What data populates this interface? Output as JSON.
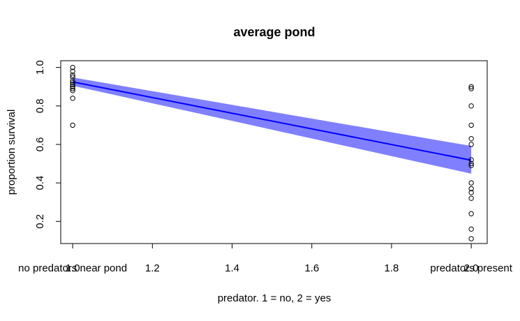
{
  "chart_data": {
    "type": "scatter",
    "title": "average pond",
    "xlabel": "predator. 1 = no, 2 = yes",
    "ylabel": "proportion survival",
    "xlim": [
      0.97,
      2.04
    ],
    "ylim": [
      0.085,
      1.035
    ],
    "x_ticks": [
      1.0,
      1.2,
      1.4,
      1.6,
      1.8,
      2.0
    ],
    "x_tick_labels": [
      "1.0",
      "1.2",
      "1.4",
      "1.6",
      "1.8",
      "2.0"
    ],
    "y_ticks": [
      0.2,
      0.4,
      0.6,
      0.8,
      1.0
    ],
    "y_tick_labels": [
      "0.2",
      "0.4",
      "0.6",
      "0.8",
      "1.0"
    ],
    "x_text_labels": [
      {
        "x": 1.0,
        "text": "no predators near pond"
      },
      {
        "x": 2.0,
        "text": "predators present"
      }
    ],
    "grid": false,
    "points": {
      "marker": "open-circle",
      "color": "#000000",
      "groups": [
        {
          "x": 1.0,
          "y": [
            1.0,
            0.98,
            0.96,
            0.95,
            0.93,
            0.92,
            0.91,
            0.9,
            0.89,
            0.88,
            0.84,
            0.7
          ]
        },
        {
          "x": 2.0,
          "y": [
            0.9,
            0.89,
            0.8,
            0.7,
            0.63,
            0.6,
            0.52,
            0.5,
            0.49,
            0.4,
            0.37,
            0.35,
            0.32,
            0.24,
            0.16,
            0.11
          ]
        }
      ]
    },
    "fit_line": {
      "x": [
        1.0,
        2.0
      ],
      "y": [
        0.925,
        0.518
      ],
      "color": "#0000ff"
    },
    "confidence_band": {
      "x": [
        1.0,
        2.0
      ],
      "lower": [
        0.905,
        0.448
      ],
      "upper": [
        0.948,
        0.592
      ],
      "color": "#8080ff"
    }
  }
}
